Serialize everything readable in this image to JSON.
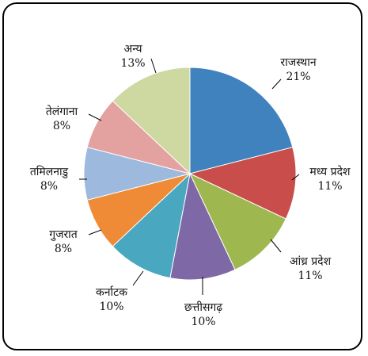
{
  "chart_data": {
    "type": "pie",
    "title": "",
    "slices": [
      {
        "label": "राजस्थान",
        "value": 21,
        "value_label": "21%",
        "color": "#3f82be"
      },
      {
        "label": "मध्य प्रदेश",
        "value": 11,
        "value_label": "11%",
        "color": "#c84d4b"
      },
      {
        "label": "आंध्र प्रदेश",
        "value": 11,
        "value_label": "11%",
        "color": "#9fb74f"
      },
      {
        "label": "छत्तीसगढ़",
        "value": 10,
        "value_label": "10%",
        "color": "#7f68a6"
      },
      {
        "label": "कर्नाटक",
        "value": 10,
        "value_label": "10%",
        "color": "#49a8c0"
      },
      {
        "label": "गुजरात",
        "value": 8,
        "value_label": "8%",
        "color": "#ef8b37"
      },
      {
        "label": "तमिलनाडु",
        "value": 8,
        "value_label": "8%",
        "color": "#9db9de"
      },
      {
        "label": "तेलंगाना",
        "value": 8,
        "value_label": "8%",
        "color": "#e3a19f"
      },
      {
        "label": "अन्य",
        "value": 13,
        "value_label": "13%",
        "color": "#cdd9a0"
      }
    ],
    "start": "12 o'clock",
    "direction": "clockwise",
    "legend": "none"
  }
}
